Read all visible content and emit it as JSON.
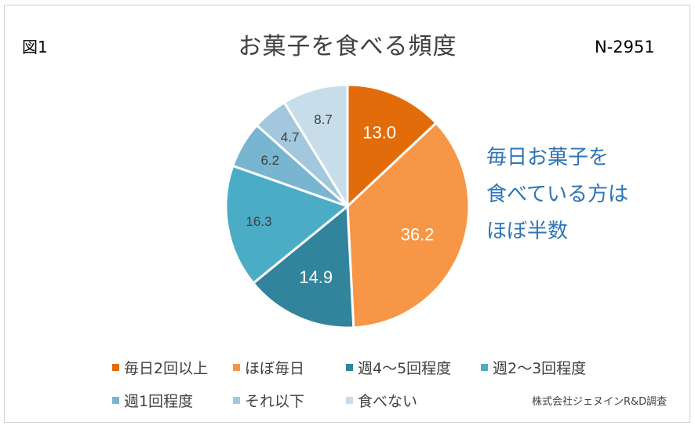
{
  "figure_label": "図1",
  "sample_size": "N-2951",
  "note_lines": [
    "毎日お菓子を",
    "食べている方は",
    "ほぼ半数"
  ],
  "source": "株式会社ジェヌインR&D調査",
  "colors": {
    "note": "#2e75b6",
    "title": "#404040"
  },
  "chart_data": {
    "type": "pie",
    "title": "お菓子を食べる頻度",
    "start_angle_deg": 0,
    "direction": "clockwise",
    "legend_position": "bottom",
    "slices": [
      {
        "label": "毎日2回以上",
        "value": 13.0,
        "value_label": "13.0",
        "color": "#e36c0a",
        "text_color": "#ffffff"
      },
      {
        "label": "ほぼ毎日",
        "value": 36.2,
        "value_label": "36.2",
        "color": "#f79646",
        "text_color": "#ffffff"
      },
      {
        "label": "週4～5回程度",
        "value": 14.9,
        "value_label": "14.9",
        "color": "#31849b",
        "text_color": "#ffffff"
      },
      {
        "label": "週2～3回程度",
        "value": 16.3,
        "value_label": "16.3",
        "color": "#4bacc6",
        "text_color": "#404040"
      },
      {
        "label": "週1回程度",
        "value": 6.2,
        "value_label": "6.2",
        "color": "#77b5d1",
        "text_color": "#404040"
      },
      {
        "label": "それ以下",
        "value": 4.7,
        "value_label": "4.7",
        "color": "#a3c7dd",
        "text_color": "#404040"
      },
      {
        "label": "食べない",
        "value": 8.7,
        "value_label": "8.7",
        "color": "#c7dde9",
        "text_color": "#404040"
      }
    ]
  }
}
